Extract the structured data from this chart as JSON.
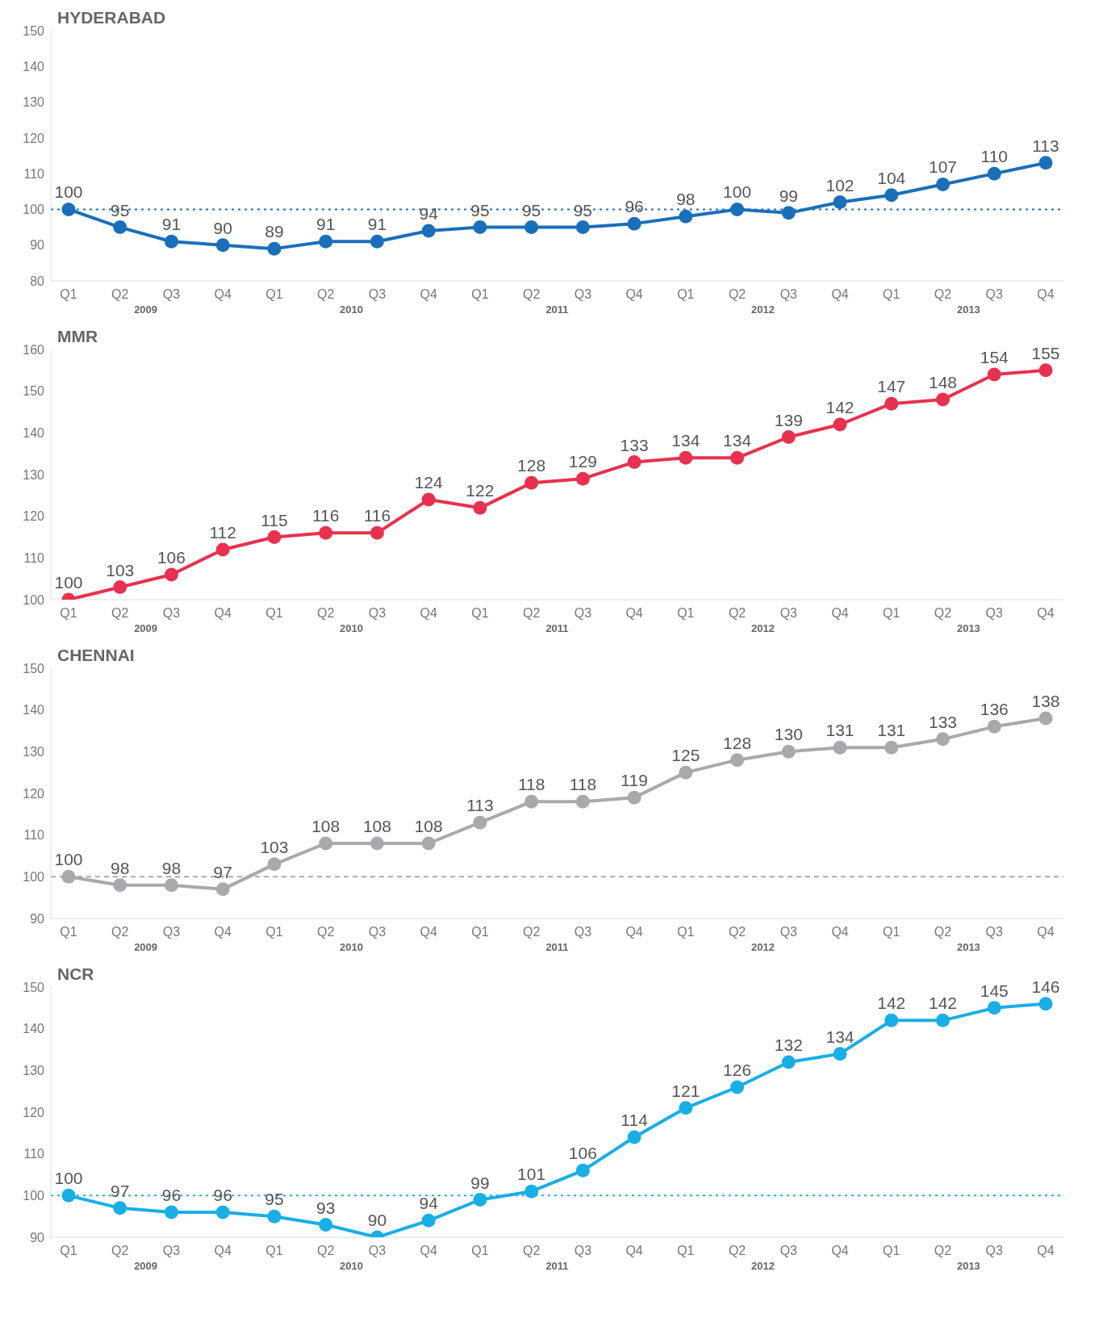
{
  "chart_data": [
    {
      "type": "line",
      "title": "HYDERABAD",
      "categories": [
        "Q1",
        "Q2",
        "Q3",
        "Q4",
        "Q1",
        "Q2",
        "Q3",
        "Q4",
        "Q1",
        "Q2",
        "Q3",
        "Q4",
        "Q1",
        "Q2",
        "Q3",
        "Q4",
        "Q1",
        "Q2",
        "Q3",
        "Q4"
      ],
      "series": [
        {
          "color": "#1a6fba",
          "values": [
            100,
            95,
            91,
            90,
            89,
            91,
            91,
            94,
            95,
            95,
            95,
            96,
            98,
            100,
            99,
            102,
            104,
            107,
            110,
            113
          ]
        }
      ],
      "ylim": [
        80,
        150
      ],
      "yticks": [
        80,
        90,
        100,
        110,
        120,
        130,
        140,
        150
      ],
      "data_labels": true,
      "marker": "circle",
      "legend": false,
      "ref_lines": [
        {
          "axis": "y",
          "value": 100,
          "color": "#1a6fba",
          "line_style": "dotted"
        }
      ],
      "annotations": [
        "2009",
        "2010",
        "2011",
        "2012",
        "2013"
      ]
    },
    {
      "type": "line",
      "title": "MMR",
      "categories": [
        "Q1",
        "Q2",
        "Q3",
        "Q4",
        "Q1",
        "Q2",
        "Q3",
        "Q4",
        "Q1",
        "Q2",
        "Q3",
        "Q4",
        "Q1",
        "Q2",
        "Q3",
        "Q4",
        "Q1",
        "Q2",
        "Q3",
        "Q4"
      ],
      "series": [
        {
          "color": "#e8314f",
          "values": [
            100,
            103,
            106,
            112,
            115,
            116,
            116,
            124,
            122,
            128,
            129,
            133,
            134,
            134,
            139,
            142,
            147,
            148,
            154,
            155
          ]
        }
      ],
      "ylim": [
        100,
        160
      ],
      "yticks": [
        100,
        110,
        120,
        130,
        140,
        150,
        160
      ],
      "data_labels": true,
      "marker": "circle",
      "legend": false,
      "annotations": [
        "2009",
        "2010",
        "2011",
        "2012",
        "2013"
      ]
    },
    {
      "type": "line",
      "title": "CHENNAI",
      "categories": [
        "Q1",
        "Q2",
        "Q3",
        "Q4",
        "Q1",
        "Q2",
        "Q3",
        "Q4",
        "Q1",
        "Q2",
        "Q3",
        "Q4",
        "Q1",
        "Q2",
        "Q3",
        "Q4",
        "Q1",
        "Q2",
        "Q3",
        "Q4"
      ],
      "series": [
        {
          "color": "#a7a9ac",
          "values": [
            100,
            98,
            98,
            97,
            103,
            108,
            108,
            108,
            113,
            118,
            118,
            119,
            125,
            128,
            130,
            131,
            131,
            133,
            136,
            138
          ]
        }
      ],
      "ylim": [
        90,
        150
      ],
      "yticks": [
        90,
        100,
        110,
        120,
        130,
        140,
        150
      ],
      "data_labels": true,
      "marker": "circle",
      "legend": false,
      "ref_lines": [
        {
          "axis": "y",
          "value": 100,
          "color": "#a7a9ac",
          "line_style": "dashed"
        }
      ],
      "annotations": [
        "2009",
        "2010",
        "2011",
        "2012",
        "2013"
      ]
    },
    {
      "type": "line",
      "title": "NCR",
      "categories": [
        "Q1",
        "Q2",
        "Q3",
        "Q4",
        "Q1",
        "Q2",
        "Q3",
        "Q4",
        "Q1",
        "Q2",
        "Q3",
        "Q4",
        "Q1",
        "Q2",
        "Q3",
        "Q4",
        "Q1",
        "Q2",
        "Q3",
        "Q4"
      ],
      "series": [
        {
          "color": "#19aee6",
          "values": [
            100,
            97,
            96,
            96,
            95,
            93,
            90,
            94,
            99,
            101,
            106,
            114,
            121,
            126,
            132,
            134,
            142,
            142,
            145,
            146
          ]
        }
      ],
      "ylim": [
        90,
        150
      ],
      "yticks": [
        90,
        100,
        110,
        120,
        130,
        140,
        150
      ],
      "data_labels": true,
      "marker": "circle",
      "legend": false,
      "ref_lines": [
        {
          "axis": "y",
          "value": 100,
          "color": "#19aee6",
          "line_style": "dotted"
        }
      ],
      "annotations": [
        "2009",
        "2010",
        "2011",
        "2012",
        "2013"
      ]
    }
  ]
}
